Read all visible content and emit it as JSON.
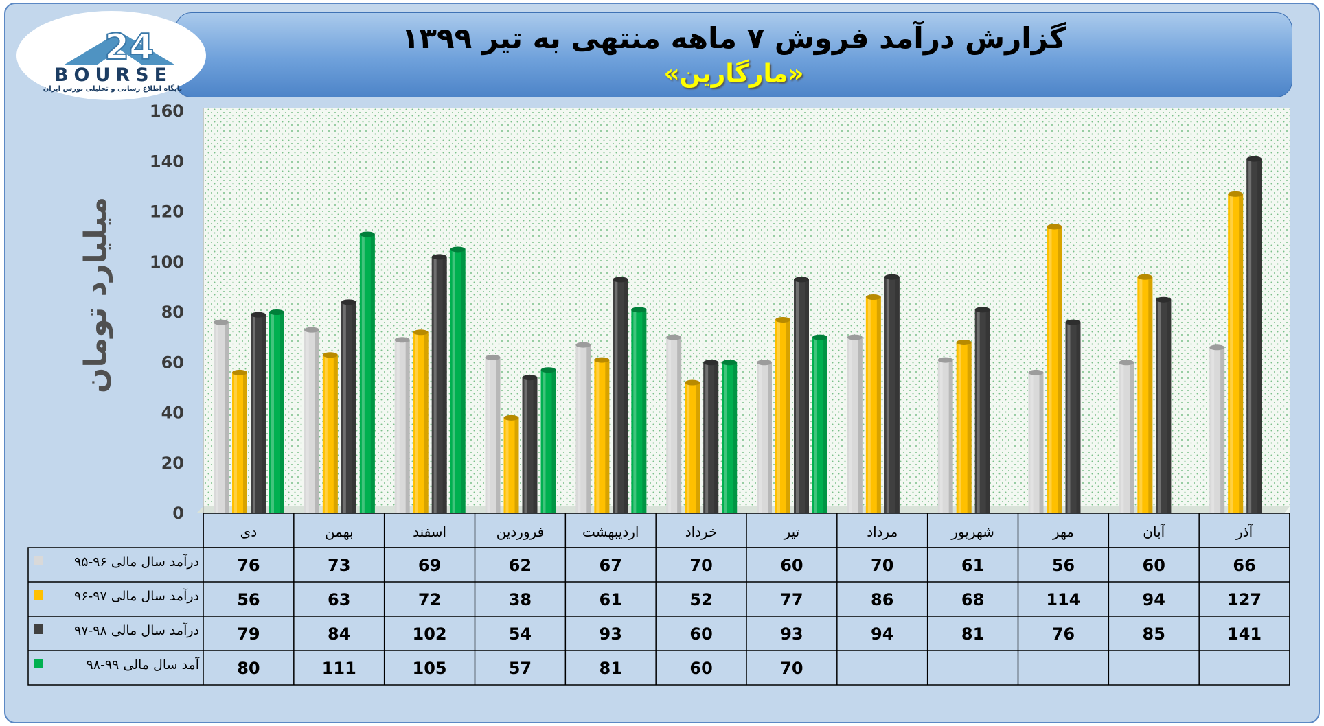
{
  "header": {
    "title": "گزارش درآمد فروش ۷ ماهه منتهی به تیر ۱۳۹۹",
    "subtitle": "«مارگارین»"
  },
  "logo": {
    "name": "BOURSE",
    "mark": "24",
    "tagline": "پایگاه اطلاع رسانی و تحلیلی بورس ایران"
  },
  "chart_data": {
    "type": "bar",
    "ylabel": "میلیارد تومان",
    "ylim": [
      0,
      160
    ],
    "yticks": [
      0,
      20,
      40,
      60,
      80,
      100,
      120,
      140,
      160
    ],
    "grid": false,
    "categories": [
      "دی",
      "بهمن",
      "اسفند",
      "فروردین",
      "اردیبهشت",
      "خرداد",
      "تیر",
      "مرداد",
      "شهریور",
      "مهر",
      "آبان",
      "آذر"
    ],
    "series": [
      {
        "name": "درآمد سال مالی ۹۶-۹۵",
        "color": "#d9d9d9",
        "values": [
          76,
          73,
          69,
          62,
          67,
          70,
          60,
          70,
          61,
          56,
          60,
          66
        ]
      },
      {
        "name": "درآمد سال مالی ۹۷-۹۶",
        "color": "#ffc000",
        "values": [
          56,
          63,
          72,
          38,
          61,
          52,
          77,
          86,
          68,
          114,
          94,
          127
        ]
      },
      {
        "name": "درآمد سال مالی ۹۸-۹۷",
        "color": "#404040",
        "values": [
          79,
          84,
          102,
          54,
          93,
          60,
          93,
          94,
          81,
          76,
          85,
          141
        ]
      },
      {
        "name": "آمد سال مالی ۹۹-۹۸",
        "color": "#00b050",
        "values": [
          80,
          111,
          105,
          57,
          81,
          60,
          70,
          null,
          null,
          null,
          null,
          null
        ]
      }
    ],
    "legend_position": "data table, left"
  }
}
